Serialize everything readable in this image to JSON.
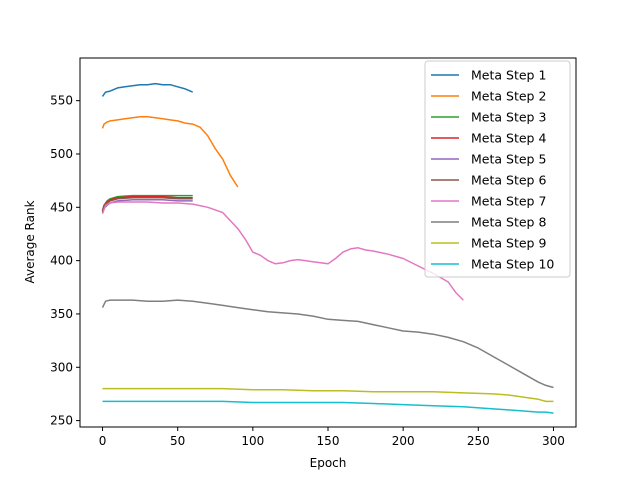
{
  "chart_data": {
    "type": "line",
    "xlabel": "Epoch",
    "ylabel": "Average Rank",
    "xlim": [
      -15,
      315
    ],
    "ylim": [
      244,
      590
    ],
    "xticks": [
      0,
      50,
      100,
      150,
      200,
      250,
      300
    ],
    "yticks": [
      250,
      300,
      350,
      400,
      450,
      500,
      550
    ],
    "grid": false,
    "legend_position": "top-right",
    "series": [
      {
        "name": "Meta Step 1",
        "color": "#1f77b4",
        "x": [
          0,
          2,
          5,
          10,
          15,
          20,
          25,
          30,
          35,
          40,
          45,
          50,
          55,
          60
        ],
        "y": [
          554,
          558,
          559,
          562,
          563,
          564,
          565,
          565,
          566,
          565,
          565,
          563,
          561,
          558
        ]
      },
      {
        "name": "Meta Step 2",
        "color": "#ff7f0e",
        "x": [
          0,
          1,
          3,
          5,
          10,
          15,
          20,
          25,
          30,
          35,
          40,
          45,
          50,
          55,
          60,
          65,
          70,
          75,
          80,
          85,
          90
        ],
        "y": [
          524,
          528,
          530,
          531,
          532,
          533,
          534,
          535,
          535,
          534,
          533,
          532,
          531,
          529,
          528,
          525,
          517,
          505,
          495,
          480,
          469
        ]
      },
      {
        "name": "Meta Step 3",
        "color": "#2ca02c",
        "x": [
          0,
          1,
          3,
          5,
          10,
          20,
          30,
          40,
          50,
          60
        ],
        "y": [
          447,
          452,
          456,
          458,
          460,
          461,
          461,
          461,
          461,
          461
        ]
      },
      {
        "name": "Meta Step 4",
        "color": "#d62728",
        "x": [
          0,
          1,
          3,
          5,
          10,
          20,
          30,
          40,
          50,
          60
        ],
        "y": [
          446,
          451,
          455,
          457,
          459,
          460,
          460,
          460,
          459,
          459
        ]
      },
      {
        "name": "Meta Step 5",
        "color": "#9467bd",
        "x": [
          0,
          1,
          3,
          5,
          10,
          20,
          30,
          40,
          50,
          60
        ],
        "y": [
          445,
          449,
          452,
          454,
          456,
          457,
          457,
          457,
          456,
          456
        ]
      },
      {
        "name": "Meta Step 6",
        "color": "#8c564b",
        "x": [
          0,
          1,
          3,
          5,
          10,
          20,
          30,
          40,
          50,
          60
        ],
        "y": [
          446,
          450,
          454,
          456,
          458,
          459,
          459,
          459,
          458,
          458
        ]
      },
      {
        "name": "Meta Step 7",
        "color": "#e377c2",
        "x": [
          0,
          2,
          5,
          10,
          20,
          30,
          40,
          50,
          60,
          70,
          80,
          90,
          95,
          100,
          105,
          110,
          115,
          120,
          125,
          130,
          140,
          150,
          155,
          160,
          165,
          170,
          175,
          180,
          190,
          200,
          210,
          220,
          230,
          235,
          240
        ],
        "y": [
          444,
          452,
          454,
          455,
          455,
          455,
          454,
          454,
          453,
          450,
          445,
          430,
          420,
          408,
          405,
          400,
          397,
          398,
          400,
          401,
          399,
          397,
          402,
          408,
          411,
          412,
          410,
          409,
          406,
          402,
          395,
          388,
          380,
          370,
          363
        ]
      },
      {
        "name": "Meta Step 8",
        "color": "#7f7f7f",
        "x": [
          0,
          2,
          5,
          10,
          20,
          30,
          40,
          50,
          60,
          70,
          80,
          90,
          100,
          110,
          120,
          130,
          140,
          150,
          160,
          170,
          180,
          190,
          200,
          210,
          220,
          230,
          240,
          250,
          260,
          270,
          280,
          290,
          295,
          300
        ],
        "y": [
          356,
          362,
          363,
          363,
          363,
          362,
          362,
          363,
          362,
          360,
          358,
          356,
          354,
          352,
          351,
          350,
          348,
          345,
          344,
          343,
          340,
          337,
          334,
          333,
          331,
          328,
          324,
          318,
          310,
          302,
          294,
          286,
          283,
          281
        ]
      },
      {
        "name": "Meta Step 9",
        "color": "#bcbd22",
        "x": [
          0,
          10,
          20,
          40,
          60,
          80,
          100,
          120,
          140,
          160,
          180,
          200,
          220,
          240,
          260,
          270,
          280,
          290,
          295,
          300
        ],
        "y": [
          280,
          280,
          280,
          280,
          280,
          280,
          279,
          279,
          278,
          278,
          277,
          277,
          277,
          276,
          275,
          274,
          272,
          270,
          268,
          268
        ]
      },
      {
        "name": "Meta Step 10",
        "color": "#17becf",
        "x": [
          0,
          10,
          20,
          40,
          60,
          80,
          100,
          120,
          140,
          160,
          180,
          200,
          220,
          240,
          260,
          270,
          280,
          290,
          295,
          300
        ],
        "y": [
          268,
          268,
          268,
          268,
          268,
          268,
          267,
          267,
          267,
          267,
          266,
          265,
          264,
          263,
          261,
          260,
          259,
          258,
          258,
          257
        ]
      }
    ]
  }
}
